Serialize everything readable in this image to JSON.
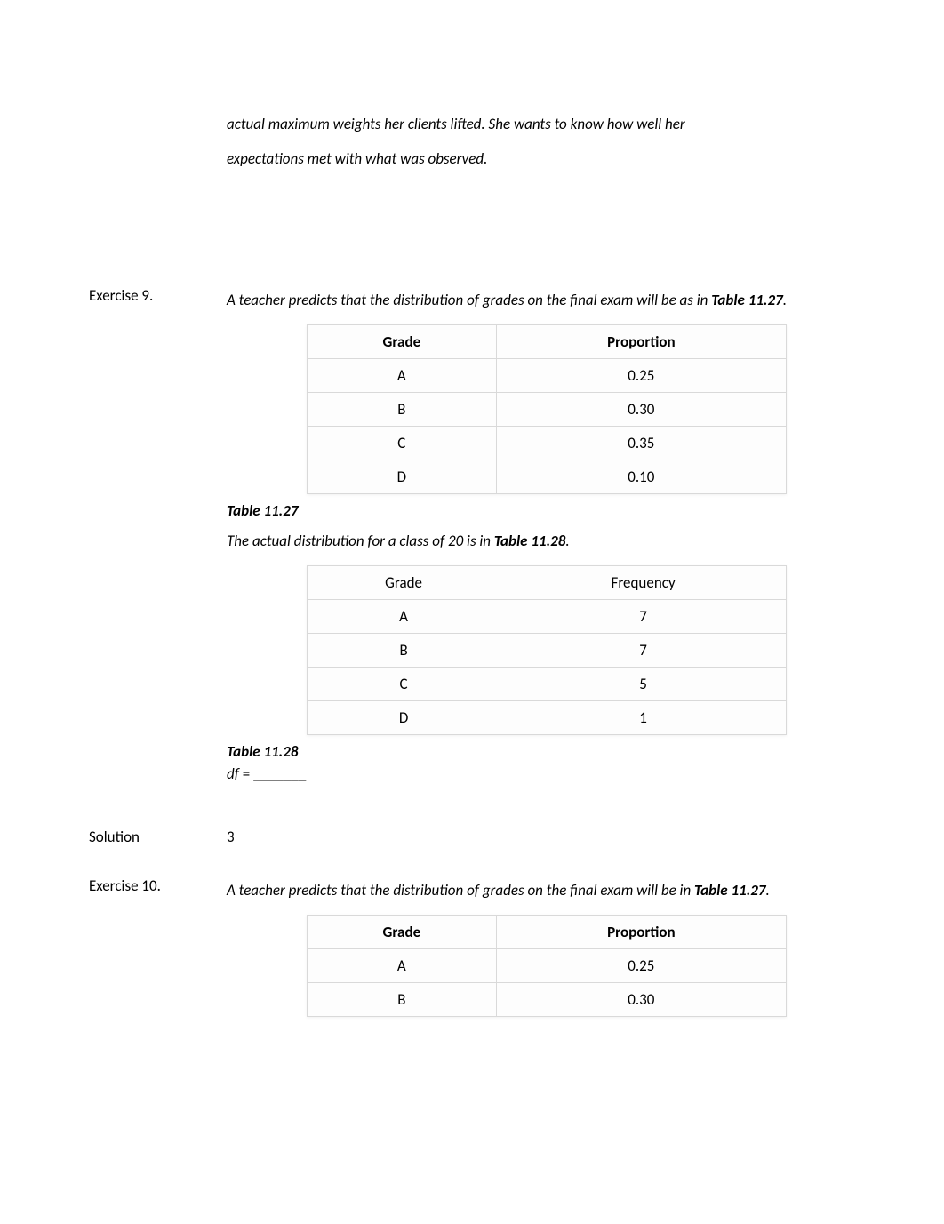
{
  "top_paragraph": {
    "line1": "actual maximum weights her clients lifted. She wants to know how well her",
    "line2": "expectations met with what was observed."
  },
  "ex9": {
    "label": "Exercise 9.",
    "prompt_part1": "A teacher predicts that the distribution of grades on the final exam will be as in ",
    "table_ref": "Table 11.27",
    "period": ".",
    "table27": {
      "headers": {
        "col1": "Grade",
        "col2": "Proportion"
      },
      "rows": [
        {
          "grade": "A",
          "value": "0.25"
        },
        {
          "grade": "B",
          "value": "0.30"
        },
        {
          "grade": "C",
          "value": "0.35"
        },
        {
          "grade": "D",
          "value": "0.10"
        }
      ],
      "caption": "Table 11.27"
    },
    "mid_text_part1": "The actual distribution for a class of 20 is in ",
    "mid_text_ref": "Table 11.28",
    "mid_text_period": ".",
    "table28": {
      "headers": {
        "col1": "Grade",
        "col2": "Frequency"
      },
      "rows": [
        {
          "grade": "A",
          "value": "7"
        },
        {
          "grade": "B",
          "value": "7"
        },
        {
          "grade": "C",
          "value": "5"
        },
        {
          "grade": "D",
          "value": "1"
        }
      ],
      "caption": "Table 11.28"
    },
    "df_label": "df ",
    "df_eq": "= _______"
  },
  "solution": {
    "label": "Solution",
    "value": "3"
  },
  "ex10": {
    "label": "Exercise 10.",
    "prompt_part1": "A teacher predicts that the distribution of grades on the final exam will be in ",
    "table_ref": "Table 11.27",
    "period": ".",
    "table27": {
      "headers": {
        "col1": "Grade",
        "col2": "Proportion"
      },
      "rows": [
        {
          "grade": "A",
          "value": "0.25"
        },
        {
          "grade": "B",
          "value": "0.30"
        }
      ]
    }
  }
}
